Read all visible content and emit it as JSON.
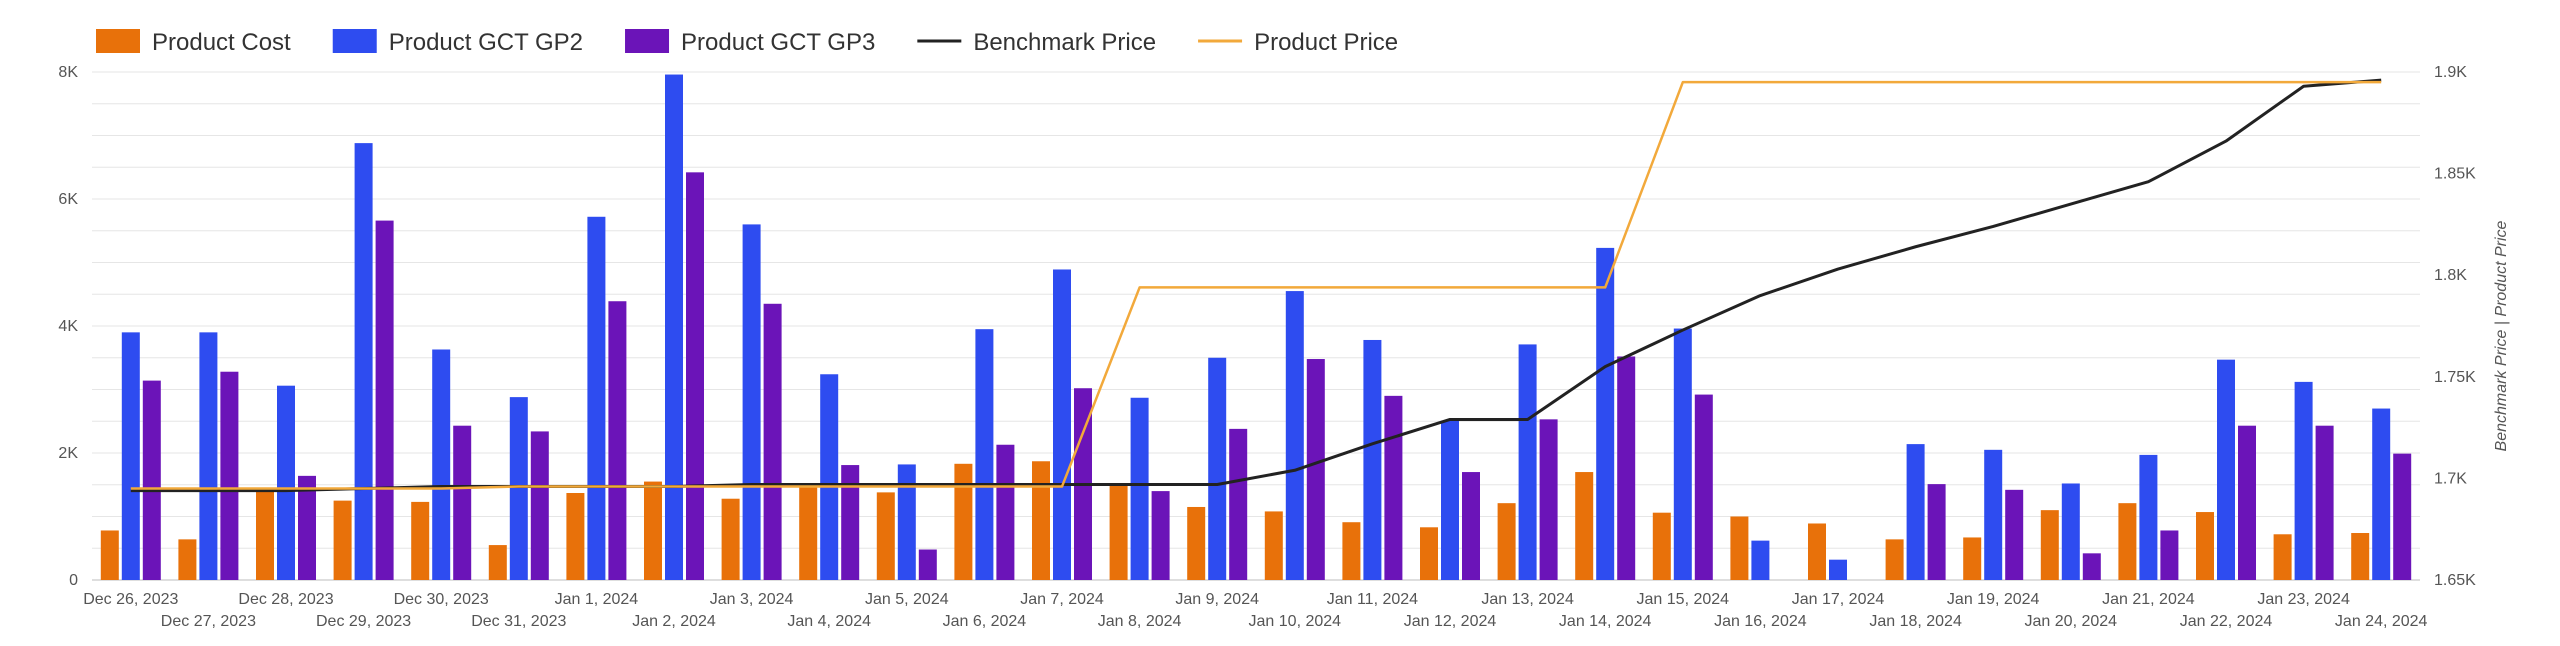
{
  "chart_data": {
    "type": "bar",
    "title": "",
    "xlabel": "",
    "ylabel": "",
    "y2label": "Benchmark Price | Product Price",
    "ylim": [
      0,
      8000
    ],
    "y2lim": [
      1650,
      1900
    ],
    "grid": true,
    "legend_position": "top-left",
    "y_ticks": [
      "0",
      "2K",
      "4K",
      "6K",
      "8K"
    ],
    "y2_ticks": [
      "1.65K",
      "1.7K",
      "1.75K",
      "1.8K",
      "1.85K",
      "1.9K"
    ],
    "categories": [
      "Dec 26, 2023",
      "Dec 27, 2023",
      "Dec 28, 2023",
      "Dec 29, 2023",
      "Dec 30, 2023",
      "Dec 31, 2023",
      "Jan 1, 2024",
      "Jan 2, 2024",
      "Jan 3, 2024",
      "Jan 4, 2024",
      "Jan 5, 2024",
      "Jan 6, 2024",
      "Jan 7, 2024",
      "Jan 8, 2024",
      "Jan 9, 2024",
      "Jan 10, 2024",
      "Jan 11, 2024",
      "Jan 12, 2024",
      "Jan 13, 2024",
      "Jan 14, 2024",
      "Jan 15, 2024",
      "Jan 16, 2024",
      "Jan 17, 2024",
      "Jan 18, 2024",
      "Jan 19, 2024",
      "Jan 20, 2024",
      "Jan 21, 2024",
      "Jan 22, 2024",
      "Jan 23, 2024",
      "Jan 24, 2024"
    ],
    "bar_series": [
      {
        "name": "Product Cost",
        "color": "#e8710a",
        "values": [
          780,
          640,
          1420,
          1250,
          1230,
          550,
          1370,
          1550,
          1280,
          1480,
          1380,
          1830,
          1870,
          1500,
          1150,
          1080,
          910,
          830,
          1210,
          1700,
          1060,
          1000,
          890,
          640,
          670,
          1100,
          1210,
          1070,
          720,
          740
        ]
      },
      {
        "name": "Product GCT GP2",
        "color": "#2e4cf0",
        "values": [
          3900,
          3900,
          3060,
          6880,
          3630,
          2880,
          5720,
          7960,
          5600,
          3240,
          1820,
          3950,
          4890,
          2870,
          3500,
          4550,
          3780,
          2510,
          3710,
          5230,
          3960,
          620,
          320,
          2140,
          2050,
          1520,
          1970,
          3470,
          3120,
          2700
        ]
      },
      {
        "name": "Product GCT GP3",
        "color": "#6b14b8",
        "values": [
          3140,
          3280,
          1640,
          5660,
          2430,
          2340,
          4390,
          6420,
          4350,
          1810,
          480,
          2130,
          3020,
          1400,
          2380,
          3480,
          2900,
          1700,
          2530,
          3520,
          2920,
          0,
          0,
          1510,
          1420,
          420,
          780,
          2430,
          2430,
          1990
        ]
      }
    ],
    "line_series": [
      {
        "name": "Benchmark Price",
        "color": "#222222",
        "axis": "right",
        "values": [
          1694,
          1694,
          1694,
          1695,
          1696,
          1696,
          1696,
          1696,
          1697,
          1697,
          1697,
          1697,
          1697,
          1697,
          1697,
          1704,
          1717,
          1729,
          1729,
          1755,
          1773,
          1790,
          1803,
          1814,
          1824,
          1835,
          1846,
          1866,
          1893,
          1896
        ]
      },
      {
        "name": "Product Price",
        "color": "#f2a93b",
        "axis": "right",
        "values": [
          1695,
          1695,
          1695,
          1695,
          1695,
          1696,
          1696,
          1696,
          1696,
          1696,
          1696,
          1696,
          1696,
          1794,
          1794,
          1794,
          1794,
          1794,
          1794,
          1794,
          1895,
          1895,
          1895,
          1895,
          1895,
          1895,
          1895,
          1895,
          1895,
          1895
        ]
      }
    ],
    "legend": [
      {
        "label": "Product Cost",
        "kind": "box",
        "color": "#e8710a"
      },
      {
        "label": "Product GCT GP2",
        "kind": "box",
        "color": "#2e4cf0"
      },
      {
        "label": "Product GCT GP3",
        "kind": "box",
        "color": "#6b14b8"
      },
      {
        "label": "Benchmark Price",
        "kind": "line",
        "color": "#222222"
      },
      {
        "label": "Product Price",
        "kind": "line",
        "color": "#f2a93b"
      }
    ]
  }
}
